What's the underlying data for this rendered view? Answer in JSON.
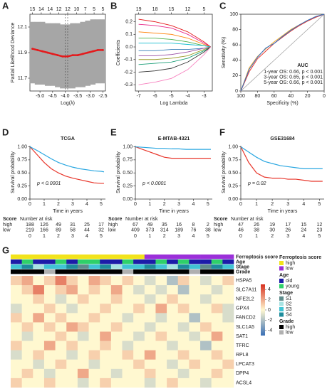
{
  "chart_data": [
    {
      "label": "A",
      "type": "cv",
      "xlabel": "Log(λ)",
      "ylabel": "Partial Likelihood Deviance",
      "x": [
        -5.3,
        -5.1,
        -4.9,
        -4.7,
        -4.5,
        -4.3,
        -4.1,
        -3.9,
        -3.7,
        -3.5,
        -3.3,
        -3.1,
        -2.9,
        -2.7,
        -2.5
      ],
      "values": [
        11.93,
        11.92,
        11.91,
        11.9,
        11.89,
        11.88,
        11.87,
        11.87,
        11.88,
        11.88,
        11.89,
        11.9,
        11.91,
        11.92,
        11.92
      ],
      "upper": [
        12.14,
        12.14,
        12.14,
        12.13,
        12.13,
        12.13,
        12.12,
        12.12,
        12.13,
        12.13,
        12.14,
        12.15,
        12.16,
        12.16,
        12.16
      ],
      "lower": [
        11.66,
        11.65,
        11.65,
        11.64,
        11.64,
        11.63,
        11.62,
        11.62,
        11.62,
        11.63,
        11.63,
        11.64,
        11.65,
        11.66,
        11.66
      ],
      "color": "#e41a1c",
      "band_color": "#a6a6a6",
      "vlines": [
        -4.0,
        -3.9
      ],
      "xlim": [
        -5.4,
        -2.4
      ],
      "ylim": [
        11.6,
        12.2
      ],
      "xticks": [
        {
          "value": -5,
          "label": "-5.0"
        },
        -4.5,
        {
          "value": -4,
          "label": "-4.0"
        },
        -3.5,
        {
          "value": -3,
          "label": "-3.0"
        },
        -2.5
      ],
      "yticks": [
        11.7,
        11.9,
        12.1
      ],
      "top_ticks": [
        {
          "value": -5.3,
          "label": "15"
        },
        {
          "value": -4.95,
          "label": "14"
        },
        {
          "value": -4.6,
          "label": "14"
        },
        {
          "value": -4.25,
          "label": "12"
        },
        {
          "value": -3.9,
          "label": "12"
        },
        {
          "value": -3.55,
          "label": "10"
        },
        {
          "value": -3.2,
          "label": "7"
        },
        {
          "value": -2.85,
          "label": "5"
        },
        {
          "value": -2.5,
          "label": "5"
        }
      ]
    },
    {
      "label": "B",
      "type": "path",
      "xlabel": "Log Lambda",
      "ylabel": "Coefficients",
      "x": [
        -7,
        -6,
        -5,
        -4,
        -3,
        -2.6
      ],
      "series": [
        {
          "color": "#e41a1c",
          "values": [
            0.22,
            0.2,
            0.17,
            0.12,
            0.04,
            0
          ]
        },
        {
          "color": "#e7298a",
          "values": [
            0.18,
            0.17,
            0.15,
            0.1,
            0.03,
            0
          ]
        },
        {
          "color": "#ff7f00",
          "values": [
            0.12,
            0.11,
            0.1,
            0.07,
            0.02,
            0
          ]
        },
        {
          "color": "#4daf4a",
          "values": [
            0.07,
            0.07,
            0.06,
            0.04,
            0.01,
            0
          ]
        },
        {
          "color": "#17becf",
          "values": [
            0.03,
            0.03,
            0.03,
            0.02,
            0.01,
            0
          ]
        },
        {
          "color": "#377eb8",
          "values": [
            -0.03,
            -0.03,
            -0.02,
            -0.02,
            -0.01,
            0
          ]
        },
        {
          "color": "#984ea3",
          "values": [
            -0.07,
            -0.07,
            -0.06,
            -0.04,
            -0.01,
            0
          ]
        },
        {
          "color": "#9c9c2a",
          "values": [
            -0.1,
            -0.1,
            -0.09,
            -0.07,
            -0.02,
            0
          ]
        },
        {
          "color": "#1b9e77",
          "values": [
            -0.14,
            -0.13,
            -0.12,
            -0.09,
            -0.03,
            0
          ]
        },
        {
          "color": "#333333",
          "values": [
            -0.2,
            -0.19,
            -0.17,
            -0.12,
            -0.04,
            0
          ]
        },
        {
          "color": "#f781bf",
          "values": [
            -0.3,
            -0.28,
            -0.25,
            -0.18,
            -0.06,
            0
          ]
        }
      ],
      "xlim": [
        -7.2,
        -2.5
      ],
      "ylim": [
        -0.35,
        0.26
      ],
      "xticks": [
        -7,
        -6,
        -5,
        -4,
        -3
      ],
      "yticks": [
        -0.3,
        -0.2,
        -0.1,
        {
          "value": 0,
          "label": "0.0"
        },
        0.1,
        0.2
      ],
      "top_ticks": [
        {
          "value": -7,
          "label": "19"
        },
        {
          "value": -6,
          "label": "18"
        },
        {
          "value": -5,
          "label": "15"
        },
        {
          "value": -4,
          "label": "12"
        },
        {
          "value": -3,
          "label": "5"
        }
      ]
    },
    {
      "label": "C",
      "type": "roc",
      "xlabel": "Specificity (%)",
      "ylabel": "Sensitivity (%)",
      "legend_title": "AUC",
      "legend_color": "#2a9bd6",
      "x": [
        100,
        90,
        80,
        70,
        60,
        50,
        40,
        30,
        20,
        10,
        0
      ],
      "series": [
        {
          "name": "1-year OS: 0.66, p < 0.001",
          "color": "#f5a623",
          "values": [
            0,
            30,
            45,
            55,
            64,
            72,
            80,
            86,
            92,
            97,
            100
          ]
        },
        {
          "name": "3-year OS: 0.65, p < 0.001",
          "color": "#e8372c",
          "values": [
            0,
            25,
            42,
            52,
            62,
            70,
            78,
            85,
            91,
            96,
            100
          ]
        },
        {
          "name": "5-year OS: 0.66, p < 0.001",
          "color": "#2a6fc9",
          "values": [
            0,
            28,
            44,
            56,
            62,
            71,
            79,
            86,
            92,
            97,
            100
          ]
        }
      ],
      "xlim": [
        100,
        0
      ],
      "ylim": [
        0,
        100
      ],
      "xticks": [
        100,
        80,
        60,
        40,
        20,
        0
      ],
      "yticks": [
        0,
        20,
        40,
        60,
        80,
        100
      ]
    },
    {
      "label": "D",
      "type": "survival",
      "title": "TCGA",
      "xlabel": "Time in years",
      "ylabel": "Survival probability",
      "pvalue": "p < 0.0001",
      "risk_header": "Score",
      "risk_title": "Number at risk",
      "x": [
        0,
        0.5,
        1,
        1.5,
        2,
        2.5,
        3,
        3.5,
        4,
        4.5,
        5,
        5.2
      ],
      "series": [
        {
          "name": "high",
          "color": "#e8372c",
          "values": [
            1,
            0.85,
            0.7,
            0.58,
            0.5,
            0.44,
            0.4,
            0.37,
            0.34,
            0.31,
            0.3,
            0.3
          ],
          "at_risk": [
            188,
            126,
            49,
            31,
            25,
            17
          ]
        },
        {
          "name": "low",
          "color": "#2aa7e1",
          "values": [
            1,
            0.93,
            0.85,
            0.77,
            0.7,
            0.65,
            0.61,
            0.58,
            0.56,
            0.54,
            0.53,
            0.52
          ],
          "at_risk": [
            219,
            166,
            89,
            58,
            44,
            32
          ]
        }
      ],
      "xlim": [
        0,
        5.3
      ],
      "ylim": [
        0,
        1.02
      ],
      "xticks": [
        0,
        1,
        2,
        3,
        4,
        5
      ],
      "yticks": [
        {
          "value": 0,
          "label": "0.00"
        },
        {
          "value": 0.25,
          "label": "0.25"
        },
        {
          "value": 0.5,
          "label": "0.50"
        },
        {
          "value": 0.75,
          "label": "0.75"
        },
        {
          "value": 1,
          "label": "1.00"
        }
      ]
    },
    {
      "label": "E",
      "type": "survival",
      "title": "E-MTAB-4321",
      "xlabel": "Time in years",
      "ylabel": "Survival probability",
      "pvalue": "p < 0.0001",
      "risk_header": "Score",
      "risk_title": "Number at risk",
      "x": [
        0,
        0.5,
        1,
        1.5,
        2,
        2.5,
        3,
        3.5,
        4,
        4.5,
        5,
        5.2
      ],
      "series": [
        {
          "name": "high",
          "color": "#e8372c",
          "values": [
            1,
            0.95,
            0.9,
            0.85,
            0.8,
            0.78,
            0.78,
            0.78,
            0.78,
            0.78,
            0.78,
            0.78
          ],
          "at_risk": [
            67,
            49,
            35,
            16,
            8,
            2
          ]
        },
        {
          "name": "low",
          "color": "#2aa7e1",
          "values": [
            1,
            0.99,
            0.98,
            0.97,
            0.97,
            0.96,
            0.96,
            0.95,
            0.95,
            0.95,
            0.95,
            0.95
          ],
          "at_risk": [
            409,
            373,
            314,
            189,
            76,
            38
          ]
        }
      ],
      "xlim": [
        0,
        5.3
      ],
      "ylim": [
        0,
        1.02
      ],
      "xticks": [
        0,
        1,
        2,
        3,
        4,
        5
      ],
      "yticks": [
        {
          "value": 0,
          "label": "0.00"
        },
        {
          "value": 0.25,
          "label": "0.25"
        },
        {
          "value": 0.5,
          "label": "0.50"
        },
        {
          "value": 0.75,
          "label": "0.75"
        },
        {
          "value": 1,
          "label": "1.00"
        }
      ]
    },
    {
      "label": "F",
      "type": "survival",
      "title": "GSE31684",
      "xlabel": "Time in years",
      "ylabel": "Survival probability",
      "pvalue": "p = 0.02",
      "risk_header": "Score",
      "risk_title": "Number at risk",
      "x": [
        0,
        0.5,
        1,
        1.5,
        2,
        2.5,
        3,
        3.5,
        4,
        4.5,
        5,
        5.2
      ],
      "series": [
        {
          "name": "high",
          "color": "#e8372c",
          "values": [
            1,
            0.7,
            0.5,
            0.42,
            0.4,
            0.4,
            0.38,
            0.38,
            0.36,
            0.34,
            0.34,
            0.34
          ],
          "at_risk": [
            47,
            26,
            19,
            17,
            15,
            12
          ]
        },
        {
          "name": "low",
          "color": "#2aa7e1",
          "values": [
            1,
            0.9,
            0.8,
            0.72,
            0.68,
            0.64,
            0.62,
            0.6,
            0.58,
            0.58,
            0.58,
            0.58
          ],
          "at_risk": [
            46,
            38,
            30,
            26,
            24,
            23
          ]
        }
      ],
      "xlim": [
        0,
        5.3
      ],
      "ylim": [
        0,
        1.02
      ],
      "xticks": [
        0,
        1,
        2,
        3,
        4,
        5
      ],
      "yticks": [
        {
          "value": 0,
          "label": "0.00"
        },
        {
          "value": 0.25,
          "label": "0.25"
        },
        {
          "value": 0.5,
          "label": "0.50"
        },
        {
          "value": 0.75,
          "label": "0.75"
        },
        {
          "value": 1,
          "label": "1.00"
        }
      ]
    },
    {
      "label": "G",
      "type": "heatmap",
      "rows": [
        "HSPA5",
        "SLC7A11",
        "NFE2L2",
        "GPX4",
        "FANCD2",
        "SLC1A5",
        "SAT1",
        "TFRC",
        "RPL8",
        "LPCAT3",
        "DPP4",
        "ACSL4"
      ],
      "values": [
        [
          1,
          2,
          0,
          1,
          3,
          1,
          0,
          2,
          1,
          0,
          1,
          0,
          -1,
          0,
          -2,
          1,
          0,
          -1,
          0,
          1
        ],
        [
          0,
          1,
          3,
          0,
          1,
          2,
          0,
          1,
          0,
          2,
          0,
          -1,
          0,
          -1,
          0,
          -2,
          0,
          0,
          -1,
          0
        ],
        [
          0,
          0,
          1,
          0,
          -1,
          0,
          1,
          0,
          0,
          1,
          0,
          0,
          -1,
          0,
          1,
          0,
          0,
          -1,
          0,
          0
        ],
        [
          -1,
          0,
          0,
          1,
          0,
          -1,
          0,
          0,
          1,
          0,
          0,
          1,
          0,
          2,
          0,
          1,
          0,
          0,
          1,
          -1
        ],
        [
          1,
          0,
          2,
          0,
          1,
          0,
          0,
          1,
          0,
          0,
          -1,
          0,
          0,
          -1,
          0,
          0,
          -2,
          0,
          0,
          -1
        ],
        [
          0,
          1,
          0,
          1,
          0,
          2,
          1,
          0,
          0,
          1,
          0,
          0,
          -1,
          0,
          0,
          -1,
          0,
          1,
          0,
          0
        ],
        [
          0,
          -1,
          0,
          0,
          1,
          0,
          -1,
          0,
          2,
          0,
          0,
          -1,
          0,
          1,
          0,
          0,
          -1,
          0,
          2,
          0
        ],
        [
          1,
          0,
          0,
          2,
          0,
          1,
          0,
          0,
          1,
          0,
          -1,
          0,
          0,
          0,
          -1,
          0,
          0,
          -2,
          0,
          0
        ],
        [
          -1,
          0,
          1,
          0,
          0,
          -1,
          0,
          1,
          0,
          0,
          1,
          0,
          2,
          0,
          0,
          1,
          0,
          0,
          1,
          0
        ],
        [
          0,
          0,
          -1,
          0,
          1,
          0,
          0,
          -1,
          0,
          0,
          0,
          1,
          0,
          0,
          -1,
          0,
          1,
          0,
          0,
          1
        ],
        [
          0,
          1,
          0,
          -1,
          0,
          0,
          2,
          0,
          0,
          -1,
          0,
          0,
          1,
          0,
          0,
          -1,
          0,
          0,
          1,
          0
        ],
        [
          1,
          0,
          0,
          1,
          0,
          0,
          -1,
          0,
          1,
          0,
          0,
          0,
          -1,
          0,
          1,
          0,
          0,
          -1,
          0,
          0
        ]
      ],
      "annotations": [
        {
          "name": "Ferroptosis score",
          "levels": [
            {
              "label": "high",
              "color": "#f2e31b"
            },
            {
              "label": "low",
              "color": "#9b30d9"
            }
          ],
          "values": [
            "high",
            "high",
            "high",
            "high",
            "high",
            "high",
            "high",
            "high",
            "high",
            "high",
            "high",
            "high",
            "low",
            "low",
            "low",
            "low",
            "low",
            "low",
            "low",
            "low"
          ]
        },
        {
          "name": "Age",
          "levels": [
            {
              "label": "old",
              "color": "#1c1ca8"
            },
            {
              "label": "young",
              "color": "#2fd06a"
            }
          ],
          "values": [
            "old",
            "young",
            "old",
            "old",
            "young",
            "old",
            "young",
            "young",
            "old",
            "old",
            "young",
            "old",
            "old",
            "young",
            "old",
            "young",
            "old",
            "old",
            "young",
            "old"
          ]
        },
        {
          "name": "Stage",
          "levels": [
            {
              "label": "S1",
              "color": "#5f8c8c"
            },
            {
              "label": "S2",
              "color": "#a6e3e3"
            },
            {
              "label": "S3",
              "color": "#40c4d4"
            },
            {
              "label": "S4",
              "color": "#1e8c9c"
            }
          ],
          "values": [
            "S3",
            "S4",
            "S2",
            "S3",
            "S3",
            "S4",
            "S1",
            "S3",
            "S4",
            "S2",
            "S3",
            "S3",
            "S4",
            "S3",
            "S2",
            "S4",
            "S3",
            "S1",
            "S4",
            "S3"
          ]
        },
        {
          "name": "Grade",
          "levels": [
            {
              "label": "high",
              "color": "#000000"
            },
            {
              "label": "low",
              "color": "#b0b0b0"
            }
          ],
          "values": [
            "high",
            "high",
            "high",
            "low",
            "high",
            "high",
            "high",
            "high",
            "high",
            "high",
            "low",
            "high",
            "high",
            "high",
            "high",
            "high",
            "low",
            "high",
            "high",
            "high"
          ]
        }
      ],
      "colors": [
        "#3a6fb5",
        "#fff8d0",
        "#d7301f"
      ],
      "clim": [
        -5,
        5
      ],
      "cticks": [
        4,
        2,
        0,
        -2,
        -4
      ]
    }
  ]
}
